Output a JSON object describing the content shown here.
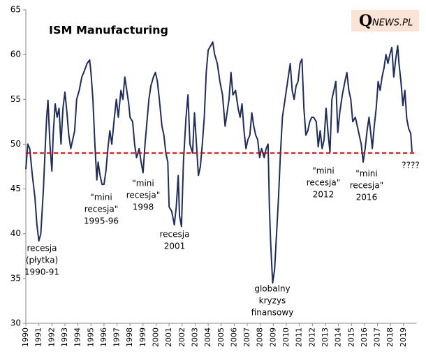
{
  "chart_data": {
    "type": "line",
    "title": "ISM Manufacturing",
    "logo": {
      "mark": "Q",
      "text": "NEWS.PL"
    },
    "x": [
      1990.0,
      1990.15,
      1990.3,
      1990.5,
      1990.7,
      1990.85,
      1991.0,
      1991.15,
      1991.35,
      1991.5,
      1991.6,
      1991.7,
      1991.85,
      1992.0,
      1992.1,
      1992.25,
      1992.4,
      1992.55,
      1992.7,
      1992.85,
      1993.0,
      1993.15,
      1993.3,
      1993.45,
      1993.6,
      1993.75,
      1993.9,
      1994.1,
      1994.3,
      1994.5,
      1994.7,
      1994.9,
      1995.0,
      1995.15,
      1995.3,
      1995.45,
      1995.55,
      1995.7,
      1995.85,
      1996.0,
      1996.15,
      1996.3,
      1996.45,
      1996.6,
      1996.8,
      1996.95,
      1997.1,
      1997.3,
      1997.45,
      1997.6,
      1997.75,
      1997.9,
      1998.0,
      1998.2,
      1998.35,
      1998.5,
      1998.7,
      1998.85,
      1999.0,
      1999.15,
      1999.3,
      1999.45,
      1999.6,
      1999.8,
      1999.95,
      2000.1,
      2000.25,
      2000.45,
      2000.6,
      2000.75,
      2000.9,
      2001.0,
      2001.2,
      2001.4,
      2001.55,
      2001.7,
      2001.8,
      2001.95,
      2002.1,
      2002.3,
      2002.45,
      2002.6,
      2002.8,
      2002.95,
      2003.1,
      2003.25,
      2003.4,
      2003.55,
      2003.7,
      2003.85,
      2004.0,
      2004.2,
      2004.35,
      2004.5,
      2004.7,
      2004.9,
      2005.1,
      2005.3,
      2005.45,
      2005.6,
      2005.75,
      2005.9,
      2006.1,
      2006.3,
      2006.45,
      2006.6,
      2006.75,
      2006.9,
      2007.05,
      2007.2,
      2007.35,
      2007.5,
      2007.65,
      2007.8,
      2007.95,
      2008.1,
      2008.3,
      2008.45,
      2008.6,
      2008.7,
      2008.8,
      2008.95,
      2009.1,
      2009.25,
      2009.4,
      2009.55,
      2009.7,
      2009.85,
      2009.95,
      2010.15,
      2010.3,
      2010.45,
      2010.6,
      2010.75,
      2010.9,
      2011.05,
      2011.2,
      2011.35,
      2011.5,
      2011.65,
      2011.8,
      2011.95,
      2012.1,
      2012.3,
      2012.45,
      2012.6,
      2012.75,
      2012.9,
      2013.05,
      2013.2,
      2013.35,
      2013.5,
      2013.65,
      2013.8,
      2013.95,
      2014.1,
      2014.3,
      2014.5,
      2014.65,
      2014.8,
      2014.95,
      2015.1,
      2015.3,
      2015.45,
      2015.6,
      2015.75,
      2015.9,
      2016.05,
      2016.2,
      2016.35,
      2016.5,
      2016.6,
      2016.75,
      2016.9,
      2017.05,
      2017.2,
      2017.35,
      2017.5,
      2017.65,
      2017.8,
      2017.95,
      2018.1,
      2018.25,
      2018.4,
      2018.55,
      2018.65,
      2018.8,
      2018.95,
      2019.1,
      2019.25,
      2019.4,
      2019.55,
      2019.65
    ],
    "series": [
      {
        "color": "#1f2d5c",
        "values": [
          47.2,
          50,
          49.5,
          46.5,
          44,
          41,
          39.2,
          40,
          45,
          50,
          53,
          54.9,
          50,
          47,
          51,
          54.5,
          53,
          54,
          50,
          54,
          55.8,
          53.6,
          51,
          49.5,
          50.5,
          51.5,
          55,
          56,
          57.5,
          58.2,
          59,
          59.4,
          58,
          55,
          50,
          46,
          48,
          46.5,
          45.5,
          45.5,
          47,
          49.5,
          51.5,
          50,
          53,
          55,
          53,
          56,
          55,
          57.5,
          56,
          54.5,
          53,
          52.5,
          50,
          48.5,
          49.5,
          48,
          46.8,
          50,
          52.5,
          55,
          56.5,
          57.5,
          58,
          57,
          55,
          52,
          51,
          49,
          48,
          43,
          42.5,
          41,
          43,
          46.5,
          42,
          40.8,
          48,
          53,
          55.5,
          50,
          49,
          53.5,
          50,
          46.5,
          47.5,
          50,
          53,
          58,
          60.5,
          61,
          61.4,
          60,
          59,
          57,
          55.5,
          52,
          53.5,
          55,
          58,
          55.5,
          56,
          54,
          53,
          54.5,
          51.5,
          49.5,
          50.5,
          51,
          53.5,
          52,
          51,
          50.5,
          48.5,
          49.5,
          48.5,
          49.5,
          50,
          43,
          38.9,
          34.5,
          36,
          40,
          44,
          49,
          53,
          54.5,
          55.5,
          57.5,
          59,
          56,
          55,
          56.5,
          57,
          59,
          59.5,
          54,
          51,
          51.5,
          52.5,
          53,
          53,
          52.5,
          49.7,
          51.5,
          49.5,
          50.5,
          54,
          51.3,
          49.1,
          55,
          56,
          57,
          51.3,
          53.5,
          55.5,
          57,
          58,
          56,
          55,
          52.5,
          53,
          52,
          51,
          50,
          48,
          49.5,
          51.5,
          53,
          51,
          49.5,
          52,
          54,
          57,
          56,
          57.5,
          58.5,
          60,
          59,
          60,
          60.8,
          57.5,
          59.5,
          61,
          59,
          57,
          54.3,
          56,
          52.8,
          51.7,
          51.2,
          49.1
        ]
      }
    ],
    "hline": {
      "value": 49,
      "color": "#e00000"
    },
    "xlim": [
      1990,
      2020
    ],
    "xticks": [
      1990,
      1991,
      1992,
      1993,
      1994,
      1995,
      1996,
      1997,
      1998,
      1999,
      2000,
      2001,
      2002,
      2003,
      2004,
      2005,
      2006,
      2007,
      2008,
      2009,
      2010,
      2011,
      2012,
      2013,
      2014,
      2015,
      2016,
      2017,
      2018,
      2019
    ],
    "ylim": [
      30,
      65
    ],
    "yticks": [
      30,
      35,
      40,
      45,
      50,
      55,
      60,
      65
    ],
    "annotations": [
      {
        "lines": [
          "recesja",
          "(płytka)",
          "1990-91"
        ]
      },
      {
        "lines": [
          "\"mini",
          "recesja\"",
          "1995-96"
        ]
      },
      {
        "lines": [
          "\"mini",
          "recesja\"",
          "1998"
        ]
      },
      {
        "lines": [
          "recesja",
          "2001"
        ]
      },
      {
        "lines": [
          "globalny",
          "kryzys",
          "finansowy"
        ]
      },
      {
        "lines": [
          "\"mini",
          "recesja\"",
          "2012"
        ]
      },
      {
        "lines": [
          "\"mini",
          "recesja\"",
          "2016"
        ]
      },
      {
        "lines": [
          "????"
        ]
      }
    ]
  }
}
